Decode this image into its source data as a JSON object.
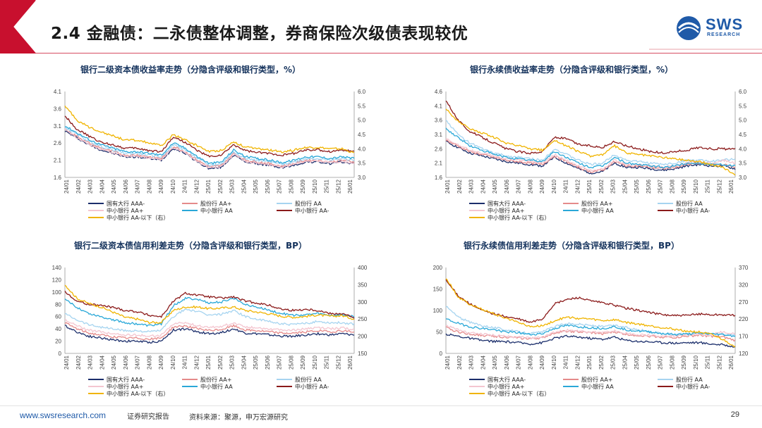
{
  "page": {
    "title": "2.4 金融债：二永债整体调整，券商保险次级债表现较优",
    "logo_text": "SWS",
    "logo_sub": "RESEARCH",
    "footer_url": "www.swsresearch.com",
    "footer_label": "证券研究报告",
    "footer_source": "资料来源：聚源，申万宏源研究",
    "page_number": "29"
  },
  "colors": {
    "header_accent": "#c8102e",
    "brand_blue": "#1f5aa8",
    "series": [
      "#1b2e6b",
      "#e58a8a",
      "#a6d4f0",
      "#f4c6d0",
      "#2aa8d8",
      "#8b1a1a",
      "#f0b400"
    ]
  },
  "x_ticks": [
    "24/01",
    "24/02",
    "24/03",
    "24/04",
    "24/05",
    "24/06",
    "24/07",
    "24/08",
    "24/09",
    "24/10",
    "24/11",
    "24/12",
    "25/01",
    "25/02",
    "25/03",
    "25/04",
    "25/05",
    "25/06",
    "25/07",
    "25/08",
    "25/09",
    "25/10",
    "25/11",
    "25/12",
    "26/01"
  ],
  "chart_data": [
    {
      "type": "line",
      "title": "银行二级资本债收益率走势（分隐含评级和银行类型，%）",
      "ylim": [
        1.6,
        4.1
      ],
      "yticks": [
        "1.6",
        "2.1",
        "2.6",
        "3.1",
        "3.6",
        "4.1"
      ],
      "y2lim": [
        3.0,
        6.0
      ],
      "y2ticks": [
        "3.0",
        "3.5",
        "4.0",
        "4.5",
        "5.0",
        "5.5",
        "6.0"
      ],
      "legend": [
        "国有大行 AAA-",
        "股份行 AA+",
        "股份行 AA",
        "中小银行 AA+",
        "中小银行 AA",
        "中小银行 AA-",
        "中小银行 AA-以下（右）"
      ],
      "series": [
        {
          "name": "国有大行 AAA-",
          "axis": "left",
          "values": [
            2.95,
            2.75,
            2.55,
            2.4,
            2.3,
            2.2,
            2.2,
            2.15,
            2.1,
            2.45,
            2.3,
            2.05,
            1.85,
            1.9,
            2.25,
            2.05,
            2.0,
            1.95,
            1.88,
            1.95,
            2.05,
            2.05,
            2.0,
            2.05,
            2.0
          ]
        },
        {
          "name": "股份行 AA+",
          "axis": "left",
          "values": [
            3.0,
            2.8,
            2.6,
            2.45,
            2.35,
            2.25,
            2.25,
            2.2,
            2.15,
            2.5,
            2.35,
            2.1,
            1.9,
            1.95,
            2.3,
            2.1,
            2.05,
            2.0,
            1.93,
            2.0,
            2.1,
            2.1,
            2.05,
            2.1,
            2.05
          ]
        },
        {
          "name": "股份行 AA",
          "axis": "left",
          "values": [
            3.05,
            2.85,
            2.65,
            2.5,
            2.4,
            2.3,
            2.3,
            2.25,
            2.2,
            2.55,
            2.4,
            2.15,
            1.95,
            2.0,
            2.35,
            2.15,
            2.1,
            2.05,
            1.98,
            2.05,
            2.15,
            2.15,
            2.1,
            2.15,
            2.1
          ]
        },
        {
          "name": "中小银行 AA+",
          "axis": "left",
          "values": [
            3.0,
            2.75,
            2.55,
            2.42,
            2.32,
            2.22,
            2.22,
            2.17,
            2.12,
            2.47,
            2.32,
            2.07,
            1.87,
            1.92,
            2.27,
            2.07,
            2.02,
            1.97,
            1.9,
            1.97,
            2.07,
            2.07,
            2.02,
            2.07,
            2.02
          ]
        },
        {
          "name": "中小银行 AA",
          "axis": "left",
          "values": [
            3.1,
            2.9,
            2.7,
            2.55,
            2.45,
            2.35,
            2.35,
            2.3,
            2.25,
            2.6,
            2.45,
            2.2,
            2.0,
            2.05,
            2.4,
            2.2,
            2.15,
            2.1,
            2.03,
            2.1,
            2.2,
            2.2,
            2.15,
            2.2,
            2.15
          ]
        },
        {
          "name": "中小银行 AA-",
          "axis": "left",
          "values": [
            3.4,
            3.0,
            2.8,
            2.62,
            2.55,
            2.45,
            2.45,
            2.38,
            2.35,
            2.78,
            2.62,
            2.38,
            2.2,
            2.25,
            2.55,
            2.38,
            2.32,
            2.3,
            2.25,
            2.3,
            2.4,
            2.4,
            2.35,
            2.4,
            2.35
          ]
        },
        {
          "name": "中小银行 AA-以下（右）",
          "axis": "right",
          "values": [
            5.5,
            5.0,
            4.75,
            4.6,
            4.45,
            4.3,
            4.3,
            4.2,
            4.1,
            4.5,
            4.3,
            4.1,
            3.9,
            3.95,
            4.25,
            4.05,
            4.0,
            3.95,
            3.9,
            3.95,
            4.05,
            4.05,
            4.0,
            4.0,
            3.85
          ]
        }
      ]
    },
    {
      "type": "line",
      "title": "银行永续债收益率走势（分隐含评级和银行类型，%）",
      "ylim": [
        1.6,
        4.6
      ],
      "yticks": [
        "1.6",
        "2.1",
        "2.6",
        "3.1",
        "3.6",
        "4.1",
        "4.6"
      ],
      "y2lim": [
        3.0,
        6.0
      ],
      "y2ticks": [
        "3.0",
        "3.5",
        "4.0",
        "4.5",
        "5.0",
        "5.5",
        "6.0"
      ],
      "legend": [
        "国有大行 AAA-",
        "股份行 AA+",
        "股份行 AA",
        "中小银行 AA+",
        "中小银行 AA",
        "中小银行 AA-",
        "中小银行 AA-以下（右）"
      ],
      "series": [
        {
          "name": "国有大行 AAA-",
          "axis": "left",
          "values": [
            2.85,
            2.65,
            2.45,
            2.35,
            2.25,
            2.15,
            2.1,
            2.05,
            2.0,
            2.3,
            2.1,
            1.9,
            1.75,
            1.8,
            2.1,
            1.95,
            1.95,
            1.9,
            1.85,
            1.9,
            2.0,
            2.05,
            2.0,
            2.0,
            1.9
          ]
        },
        {
          "name": "股份行 AA+",
          "axis": "left",
          "values": [
            2.9,
            2.7,
            2.5,
            2.4,
            2.3,
            2.2,
            2.15,
            2.1,
            2.05,
            2.35,
            2.15,
            1.95,
            1.8,
            1.85,
            2.15,
            2.0,
            2.0,
            1.95,
            1.9,
            1.95,
            2.05,
            2.1,
            2.05,
            2.05,
            1.95
          ]
        },
        {
          "name": "股份行 AA",
          "axis": "left",
          "values": [
            3.6,
            3.1,
            2.8,
            2.6,
            2.45,
            2.35,
            2.3,
            2.25,
            2.2,
            2.6,
            2.4,
            2.2,
            2.05,
            2.1,
            2.4,
            2.2,
            2.15,
            2.1,
            2.05,
            2.1,
            2.2,
            2.2,
            2.15,
            2.2,
            2.25
          ]
        },
        {
          "name": "中小银行 AA+",
          "axis": "left",
          "values": [
            2.95,
            2.75,
            2.55,
            2.45,
            2.35,
            2.25,
            2.2,
            2.15,
            2.1,
            2.4,
            2.2,
            2.0,
            1.85,
            1.9,
            2.2,
            2.05,
            2.05,
            2.0,
            1.95,
            2.0,
            2.1,
            2.15,
            2.1,
            2.2,
            2.1
          ]
        },
        {
          "name": "中小银行 AA",
          "axis": "left",
          "values": [
            3.3,
            3.0,
            2.7,
            2.55,
            2.4,
            2.3,
            2.25,
            2.2,
            2.15,
            2.5,
            2.3,
            2.1,
            1.95,
            2.0,
            2.3,
            2.1,
            2.05,
            2.0,
            1.95,
            2.0,
            2.1,
            2.1,
            2.05,
            2.05,
            2.0
          ]
        },
        {
          "name": "中小银行 AA-",
          "axis": "left",
          "values": [
            4.3,
            3.6,
            3.2,
            3.0,
            2.8,
            2.6,
            2.5,
            2.45,
            2.5,
            3.0,
            2.95,
            2.75,
            2.7,
            2.65,
            2.85,
            2.7,
            2.6,
            2.5,
            2.45,
            2.5,
            2.55,
            2.65,
            2.6,
            2.6,
            2.58
          ]
        },
        {
          "name": "中小银行 AA-以下（右）",
          "axis": "right",
          "values": [
            5.4,
            4.95,
            4.7,
            4.55,
            4.4,
            4.2,
            4.1,
            4.0,
            3.95,
            4.3,
            4.1,
            3.9,
            3.75,
            3.8,
            4.1,
            3.85,
            3.8,
            3.75,
            3.7,
            3.65,
            3.6,
            3.55,
            3.45,
            3.35,
            3.1
          ]
        }
      ]
    },
    {
      "type": "line",
      "title": "银行二级资本债信用利差走势（分隐含评级和银行类型，BP）",
      "ylim": [
        0,
        140
      ],
      "yticks": [
        "0",
        "20",
        "40",
        "60",
        "80",
        "100",
        "120",
        "140"
      ],
      "y2lim": [
        150,
        400
      ],
      "y2ticks": [
        "150",
        "200",
        "250",
        "300",
        "350",
        "400"
      ],
      "legend": [
        "国有大行 AAA-",
        "股份行 AA+",
        "股份行 AA",
        "中小银行 AA+",
        "中小银行 AA",
        "中小银行 AA-",
        "中小银行 AA-以下（右）"
      ],
      "series": [
        {
          "name": "国有大行 AAA-",
          "axis": "left",
          "values": [
            45,
            35,
            28,
            25,
            22,
            20,
            20,
            18,
            20,
            38,
            40,
            35,
            32,
            34,
            40,
            33,
            32,
            30,
            28,
            28,
            30,
            32,
            30,
            32,
            30
          ]
        },
        {
          "name": "股份行 AA+",
          "axis": "left",
          "values": [
            50,
            40,
            33,
            30,
            27,
            25,
            25,
            23,
            25,
            43,
            45,
            40,
            37,
            39,
            45,
            38,
            37,
            35,
            33,
            33,
            35,
            37,
            35,
            37,
            35
          ]
        },
        {
          "name": "股份行 AA",
          "axis": "left",
          "values": [
            65,
            55,
            47,
            43,
            40,
            37,
            37,
            35,
            38,
            60,
            72,
            68,
            62,
            64,
            70,
            60,
            55,
            52,
            48,
            47,
            49,
            52,
            50,
            50,
            48
          ]
        },
        {
          "name": "中小银行 AA+",
          "axis": "left",
          "values": [
            55,
            45,
            38,
            35,
            32,
            30,
            30,
            28,
            30,
            48,
            50,
            45,
            42,
            44,
            50,
            43,
            42,
            40,
            38,
            38,
            40,
            42,
            40,
            42,
            38
          ]
        },
        {
          "name": "中小银行 AA",
          "axis": "left",
          "values": [
            88,
            75,
            65,
            60,
            55,
            50,
            48,
            45,
            48,
            78,
            90,
            88,
            82,
            84,
            90,
            80,
            75,
            70,
            65,
            62,
            63,
            65,
            62,
            63,
            60
          ]
        },
        {
          "name": "中小银行 AA-",
          "axis": "left",
          "values": [
            100,
            85,
            80,
            78,
            75,
            70,
            68,
            62,
            60,
            85,
            98,
            95,
            92,
            90,
            92,
            85,
            82,
            78,
            72,
            70,
            72,
            70,
            65,
            65,
            58
          ]
        },
        {
          "name": "中小银行 AA-以下（右）",
          "axis": "right",
          "values": [
            350,
            310,
            295,
            285,
            270,
            255,
            250,
            240,
            240,
            275,
            285,
            285,
            280,
            282,
            285,
            275,
            270,
            265,
            258,
            255,
            258,
            262,
            258,
            260,
            250
          ]
        }
      ]
    },
    {
      "type": "line",
      "title": "银行永续债信用利差走势（分隐含评级和银行类型，BP）",
      "ylim": [
        0,
        200
      ],
      "yticks": [
        "0",
        "50",
        "100",
        "150",
        "200"
      ],
      "y2lim": [
        120,
        370
      ],
      "y2ticks": [
        "120",
        "170",
        "220",
        "270",
        "320",
        "370"
      ],
      "legend": [
        "国有大行 AAA-",
        "股份行 AA+",
        "股份行 AA",
        "中小银行 AA+",
        "中小银行 AA",
        "中小银行 AA-",
        "中小银行 AA-以下（右）"
      ],
      "series": [
        {
          "name": "国有大行 AAA-",
          "axis": "left",
          "values": [
            45,
            40,
            35,
            30,
            28,
            27,
            25,
            22,
            25,
            35,
            40,
            38,
            35,
            33,
            38,
            30,
            28,
            27,
            25,
            24,
            25,
            25,
            22,
            20,
            15
          ]
        },
        {
          "name": "股份行 AA+",
          "axis": "left",
          "values": [
            60,
            50,
            45,
            42,
            40,
            38,
            36,
            34,
            36,
            48,
            52,
            50,
            48,
            46,
            50,
            44,
            42,
            40,
            38,
            37,
            40,
            42,
            40,
            38,
            30
          ]
        },
        {
          "name": "股份行 AA",
          "axis": "left",
          "values": [
            110,
            85,
            72,
            65,
            60,
            55,
            50,
            46,
            50,
            62,
            70,
            68,
            65,
            62,
            65,
            60,
            55,
            50,
            46,
            44,
            45,
            48,
            46,
            45,
            42
          ]
        },
        {
          "name": "中小银行 AA+",
          "axis": "left",
          "values": [
            65,
            55,
            48,
            45,
            42,
            40,
            38,
            36,
            38,
            50,
            54,
            52,
            50,
            48,
            52,
            46,
            44,
            42,
            40,
            40,
            42,
            45,
            44,
            50,
            45
          ]
        },
        {
          "name": "中小银行 AA",
          "axis": "left",
          "values": [
            80,
            70,
            62,
            58,
            55,
            50,
            48,
            44,
            46,
            58,
            65,
            62,
            60,
            58,
            62,
            55,
            52,
            50,
            46,
            44,
            45,
            47,
            45,
            44,
            40
          ]
        },
        {
          "name": "中小银行 AA-",
          "axis": "left",
          "values": [
            170,
            135,
            115,
            100,
            92,
            85,
            80,
            72,
            80,
            115,
            125,
            130,
            122,
            118,
            112,
            105,
            100,
            95,
            90,
            88,
            88,
            92,
            90,
            90,
            88
          ]
        },
        {
          "name": "中小银行 AA-以下（右）",
          "axis": "right",
          "values": [
            340,
            285,
            262,
            248,
            235,
            222,
            212,
            198,
            200,
            215,
            225,
            222,
            220,
            215,
            218,
            210,
            205,
            200,
            195,
            190,
            185,
            182,
            175,
            160,
            140
          ]
        }
      ]
    }
  ]
}
